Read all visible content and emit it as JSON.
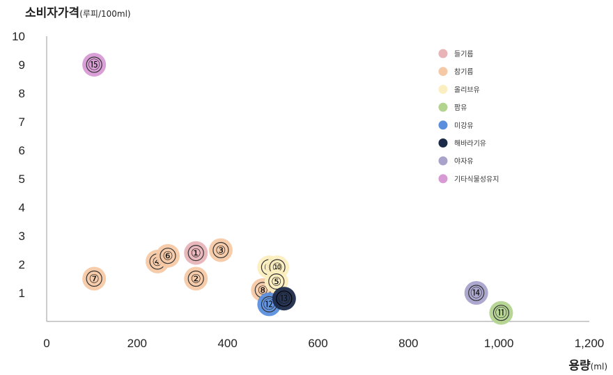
{
  "chart_data": {
    "type": "scatter",
    "xlabel": "용량",
    "xlabel_unit": "(ml)",
    "ylabel": "소비자가격",
    "ylabel_unit": "(루피/100ml)",
    "xlim": [
      0,
      1200
    ],
    "ylim": [
      0,
      10
    ],
    "x_ticks": [
      "0",
      "200",
      "400",
      "600",
      "800",
      "1,000",
      "1,200"
    ],
    "y_ticks": [
      "1",
      "2",
      "3",
      "4",
      "5",
      "6",
      "7",
      "8",
      "9",
      "10"
    ],
    "legend_position": "top-right",
    "series": [
      {
        "name": "들기름",
        "color": "#e8b4b8",
        "points": [
          {
            "label": "①",
            "x": 330,
            "y": 2.4
          }
        ]
      },
      {
        "name": "참기름",
        "color": "#f6c9a6",
        "points": [
          {
            "label": "②",
            "x": 330,
            "y": 1.5
          },
          {
            "label": "③",
            "x": 385,
            "y": 2.5
          },
          {
            "label": "④",
            "x": 245,
            "y": 2.1
          },
          {
            "label": "⑥",
            "x": 268,
            "y": 2.3
          },
          {
            "label": "⑦",
            "x": 105,
            "y": 1.5
          },
          {
            "label": "⑧",
            "x": 478,
            "y": 1.1
          }
        ]
      },
      {
        "name": "올리브유",
        "color": "#fbeec0",
        "points": [
          {
            "label": "⑨",
            "x": 492,
            "y": 1.9
          },
          {
            "label": "⑩",
            "x": 510,
            "y": 1.9
          },
          {
            "label": "⑤",
            "x": 508,
            "y": 1.4
          }
        ]
      },
      {
        "name": "팜유",
        "color": "#b3d48f",
        "points": [
          {
            "label": "⑪",
            "x": 1005,
            "y": 0.3
          }
        ]
      },
      {
        "name": "미강유",
        "color": "#5b8fde",
        "points": [
          {
            "label": "⑫",
            "x": 492,
            "y": 0.6
          }
        ]
      },
      {
        "name": "해바라기유",
        "color": "#1c2a4a",
        "points": [
          {
            "label": "⑬",
            "x": 525,
            "y": 0.8
          }
        ]
      },
      {
        "name": "야자유",
        "color": "#a9a3cc",
        "points": [
          {
            "label": "⑭",
            "x": 950,
            "y": 1.0
          }
        ]
      },
      {
        "name": "기타식물성유지",
        "color": "#d79ad4",
        "points": [
          {
            "label": "⑮",
            "x": 105,
            "y": 9.0
          }
        ]
      }
    ]
  }
}
